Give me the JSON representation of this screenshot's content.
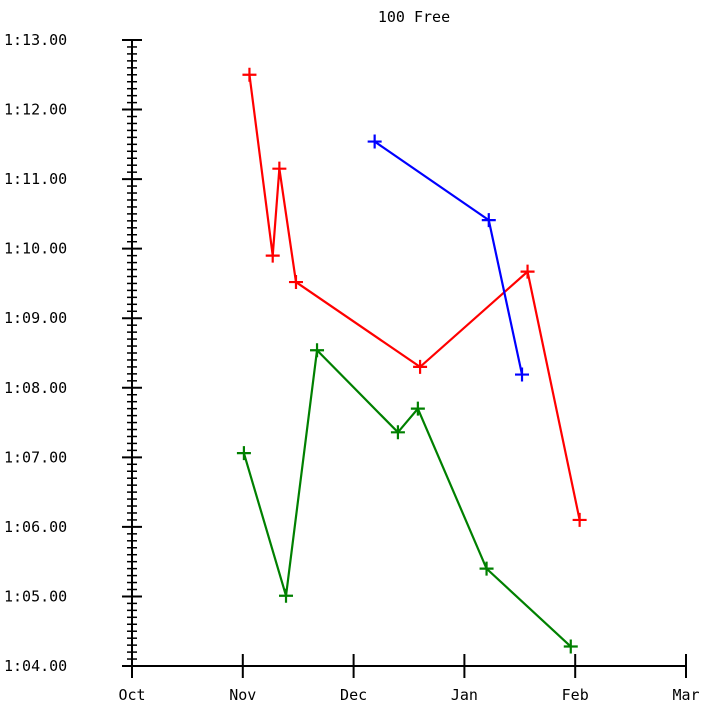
{
  "chart_data": {
    "type": "line",
    "title": "100 Free",
    "xlabel": "",
    "ylabel": "",
    "x_tick_labels": [
      "Oct",
      "Nov",
      "Dec",
      "Jan",
      "Feb",
      "Mar"
    ],
    "y_tick_labels": [
      "1:04.00",
      "1:05.00",
      "1:06.00",
      "1:07.00",
      "1:08.00",
      "1:09.00",
      "1:10.00",
      "1:11.00",
      "1:12.00",
      "1:13.00"
    ],
    "xlim": [
      0,
      5
    ],
    "ylim": [
      64,
      73
    ],
    "y_minor_step": 0.1,
    "grid": false,
    "marker": "plus",
    "series": [
      {
        "color": "#ff0000",
        "points": [
          {
            "x": 1.06,
            "y": 72.5
          },
          {
            "x": 1.27,
            "y": 69.9
          },
          {
            "x": 1.33,
            "y": 71.15
          },
          {
            "x": 1.48,
            "y": 69.52
          },
          {
            "x": 2.6,
            "y": 68.3
          },
          {
            "x": 3.57,
            "y": 69.67
          },
          {
            "x": 4.04,
            "y": 66.1
          }
        ]
      },
      {
        "color": "#0000ff",
        "points": [
          {
            "x": 2.19,
            "y": 71.54
          },
          {
            "x": 3.22,
            "y": 70.41
          },
          {
            "x": 3.52,
            "y": 68.19
          }
        ]
      },
      {
        "color": "#008000",
        "points": [
          {
            "x": 1.01,
            "y": 67.06
          },
          {
            "x": 1.39,
            "y": 65.01
          },
          {
            "x": 1.67,
            "y": 68.54
          },
          {
            "x": 2.4,
            "y": 67.36
          },
          {
            "x": 2.58,
            "y": 67.7
          },
          {
            "x": 3.2,
            "y": 65.4
          },
          {
            "x": 3.96,
            "y": 64.28
          }
        ]
      }
    ]
  }
}
